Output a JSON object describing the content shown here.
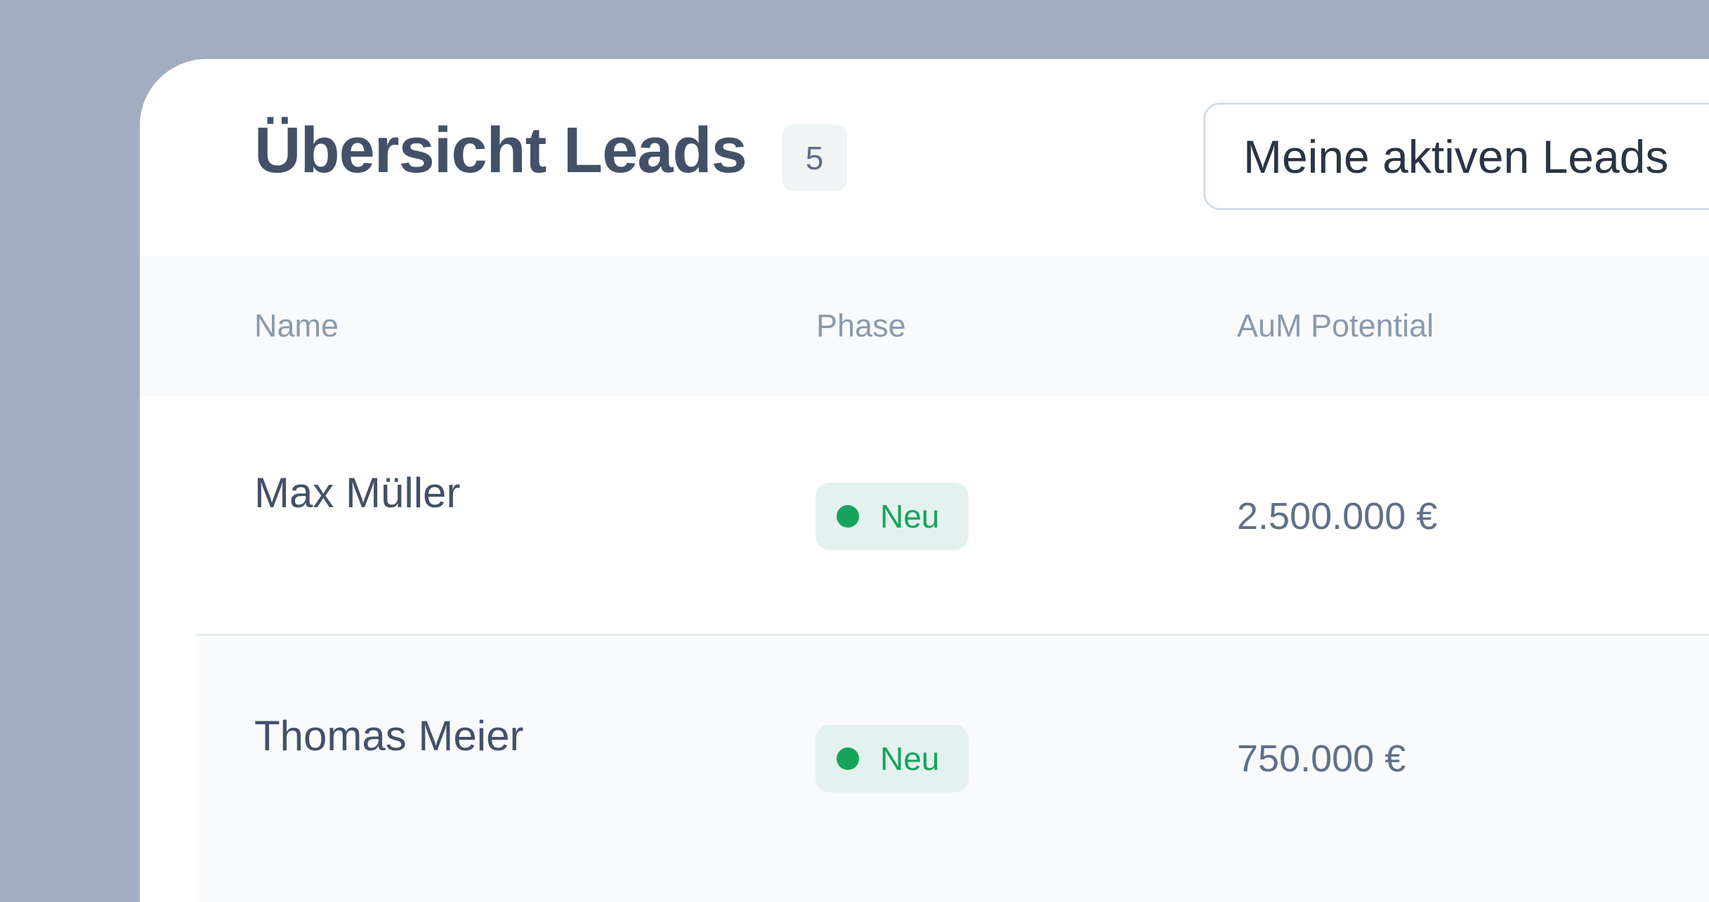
{
  "header": {
    "title": "Übersicht Leads",
    "count": "5",
    "filter_label": "Meine aktiven Leads"
  },
  "table": {
    "columns": [
      "Name",
      "Phase",
      "AuM Potential"
    ],
    "rows": [
      {
        "name": "Max Müller",
        "phase": "Neu",
        "aum": "2.500.000 €"
      },
      {
        "name": "Thomas Meier",
        "phase": "Neu",
        "aum": "750.000 €"
      }
    ]
  },
  "colors": {
    "background": "#a2aebf",
    "phase_new": "#17a35c",
    "title": "#435168"
  }
}
